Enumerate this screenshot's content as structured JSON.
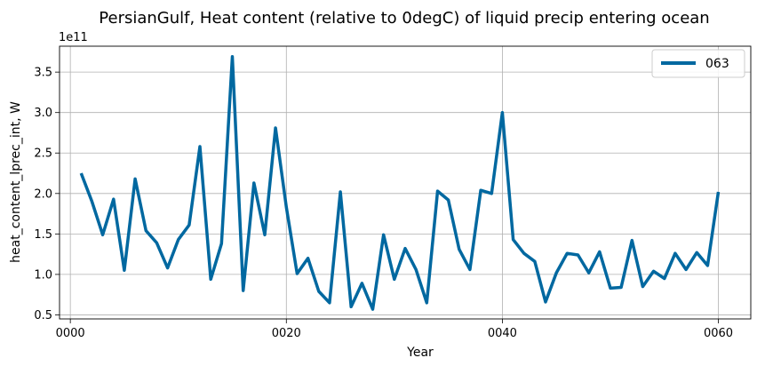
{
  "chart_data": {
    "type": "line",
    "title": "PersianGulf, Heat content (relative to 0degC) of liquid precip entering ocean",
    "xlabel": "Year",
    "ylabel": "heat_content_lprec_int, W",
    "y_offset_label": "1e11",
    "xlim": [
      -1,
      63
    ],
    "ylim": [
      0.45,
      3.82
    ],
    "x_ticks": [
      0,
      20,
      40,
      60
    ],
    "x_tick_labels": [
      "0000",
      "0020",
      "0040",
      "0060"
    ],
    "y_ticks": [
      0.5,
      1.0,
      1.5,
      2.0,
      2.5,
      3.0,
      3.5
    ],
    "y_tick_labels": [
      "0.5",
      "1.0",
      "1.5",
      "2.0",
      "2.5",
      "3.0",
      "3.5"
    ],
    "grid": true,
    "legend_position": "top-right",
    "series": [
      {
        "name": "063",
        "color": "#0068a0",
        "x": [
          1,
          2,
          3,
          4,
          5,
          6,
          7,
          8,
          9,
          10,
          11,
          12,
          13,
          14,
          15,
          16,
          17,
          18,
          19,
          20,
          21,
          22,
          23,
          24,
          25,
          26,
          27,
          28,
          29,
          30,
          31,
          32,
          33,
          34,
          35,
          36,
          37,
          38,
          39,
          40,
          41,
          42,
          43,
          44,
          45,
          46,
          47,
          48,
          49,
          50,
          51,
          52,
          53,
          54,
          55,
          56,
          57,
          58,
          59,
          60
        ],
        "values": [
          2.25,
          1.9,
          1.49,
          1.93,
          1.05,
          2.18,
          1.54,
          1.39,
          1.08,
          1.43,
          1.61,
          2.58,
          0.94,
          1.38,
          3.69,
          0.8,
          2.13,
          1.49,
          2.81,
          1.83,
          1.01,
          1.2,
          0.79,
          0.65,
          2.02,
          0.6,
          0.89,
          0.57,
          1.49,
          0.94,
          1.32,
          1.06,
          0.65,
          2.03,
          1.92,
          1.31,
          1.06,
          2.04,
          2.0,
          3.0,
          1.43,
          1.26,
          1.16,
          0.66,
          1.02,
          1.26,
          1.24,
          1.02,
          1.28,
          0.83,
          0.84,
          1.42,
          0.85,
          1.04,
          0.95,
          1.26,
          1.06,
          1.27,
          1.11,
          2.02
        ]
      }
    ]
  }
}
